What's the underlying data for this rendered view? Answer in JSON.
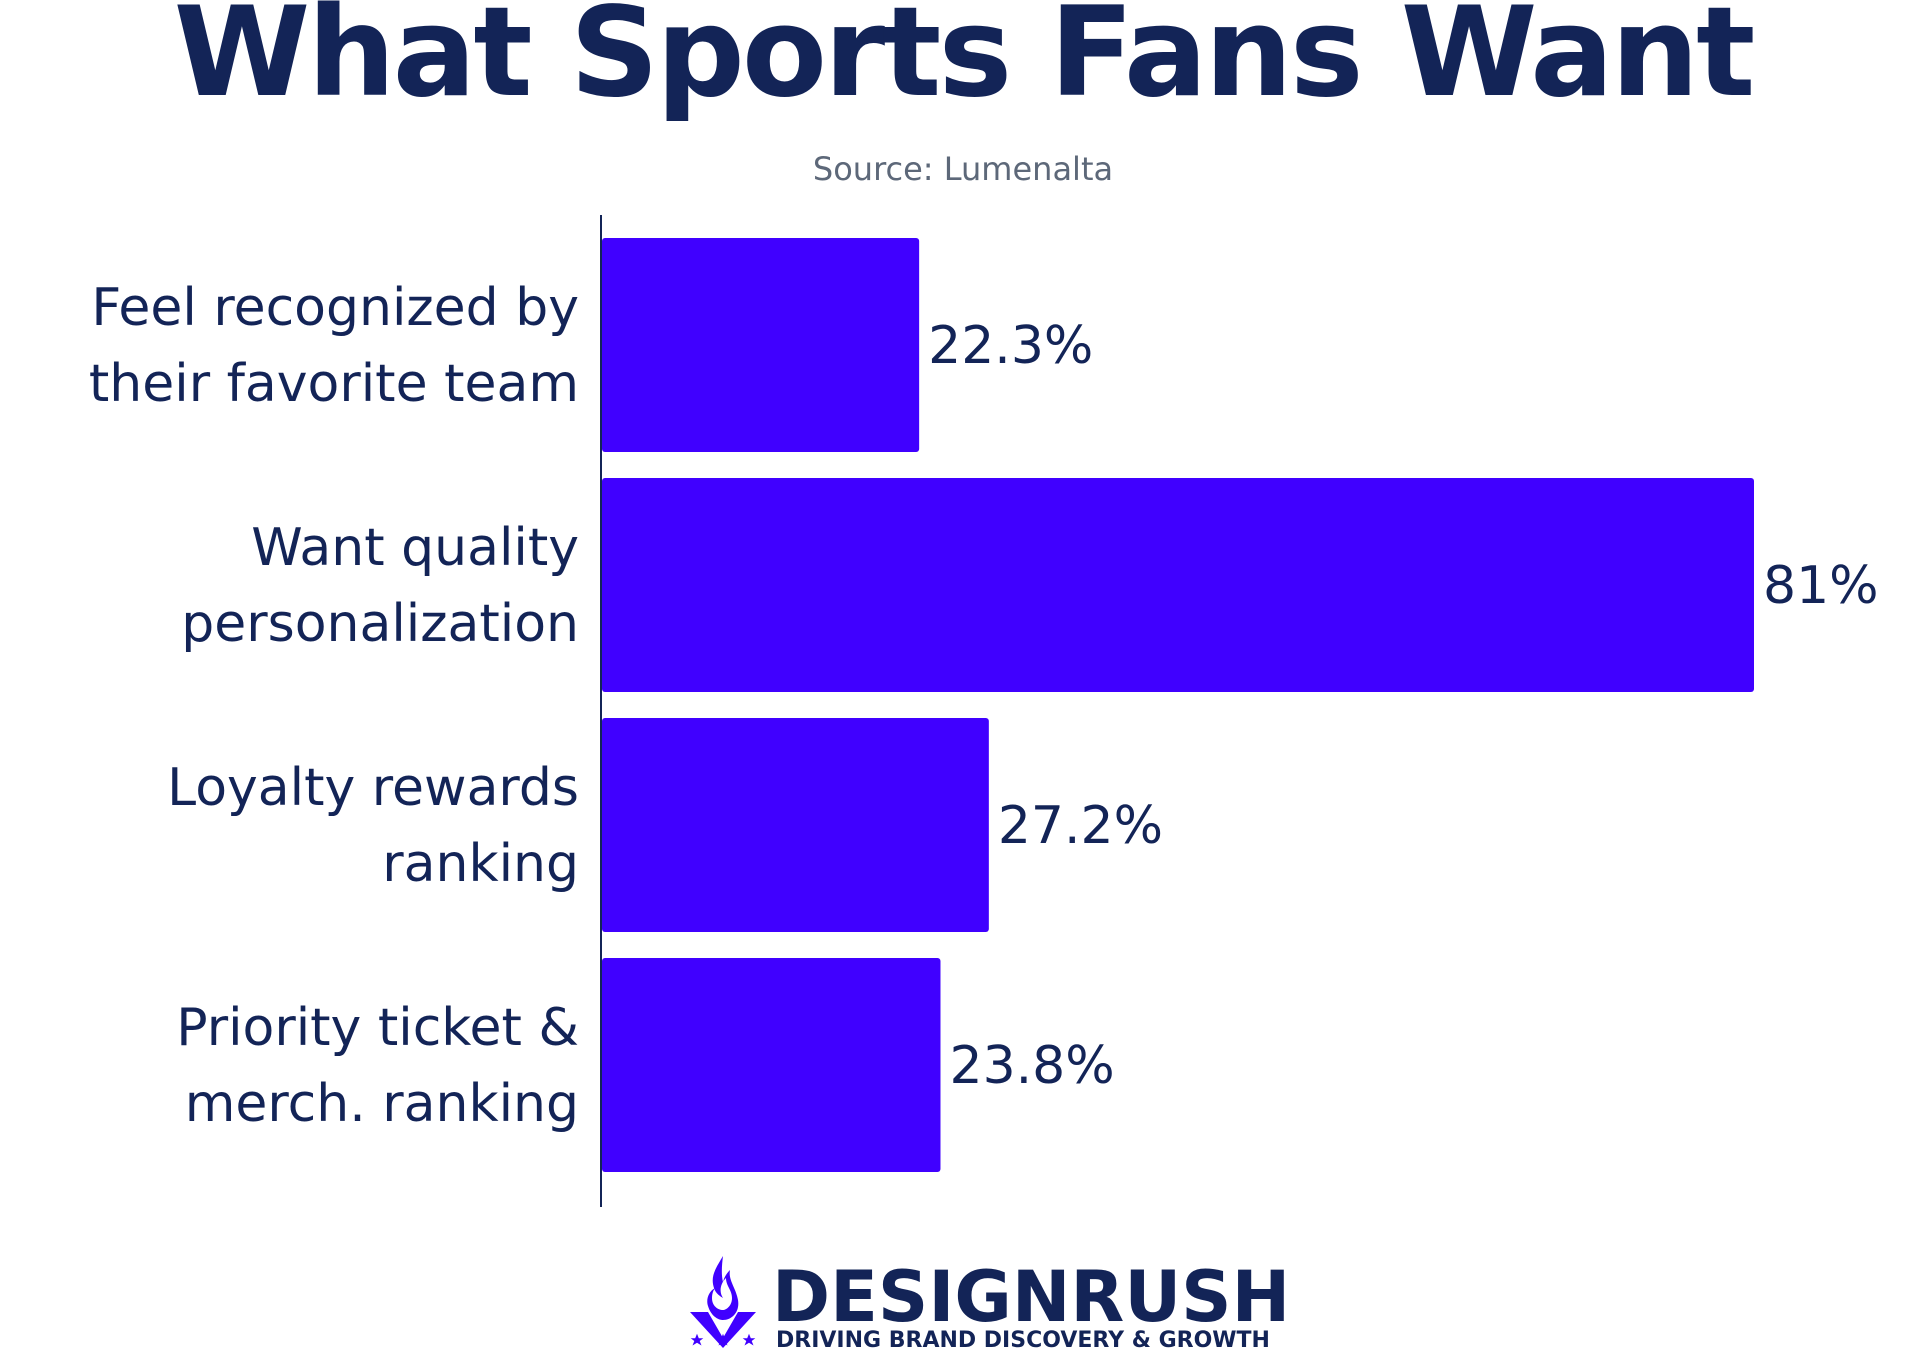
{
  "title": "What Sports Fans Want",
  "source": "Source: Lumenalta",
  "colors": {
    "bar": "#4000ff",
    "text": "#132457",
    "source_text": "#5d6879",
    "axis": "#132457"
  },
  "chart_data": {
    "type": "bar",
    "orientation": "horizontal",
    "title": "What Sports Fans Want",
    "subtitle": "Source: Lumenalta",
    "categories": [
      [
        "Feel recognized by",
        "their favorite team"
      ],
      [
        "Want quality",
        "personalization"
      ],
      [
        "Loyalty rewards",
        "ranking"
      ],
      [
        "Priority ticket &",
        "merch. ranking"
      ]
    ],
    "values": [
      22.3,
      81,
      27.2,
      23.8
    ],
    "value_labels": [
      "22.3%",
      "81%",
      "27.2%",
      "23.8%"
    ],
    "xlim": [
      0,
      100
    ],
    "grid": false,
    "legend": "none"
  },
  "brand": {
    "name": "DESIGNRUSH",
    "tagline": "DRIVING BRAND DISCOVERY & GROWTH",
    "logo_icon": "flame-v-logo-icon"
  }
}
